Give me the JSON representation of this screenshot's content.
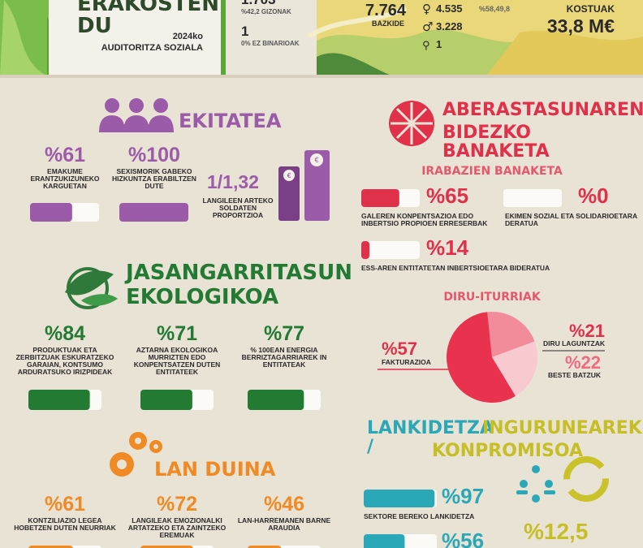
{
  "header": {
    "title": "ERAKOSTEN DU",
    "year": "2024ko",
    "subtitle": "AUDITORITZA SOZIALA",
    "workers": {
      "men_count": "1.703",
      "men_pct": "%42,2 GIZONAK",
      "nonbinary_count": "1",
      "nonbinary_pct": "0% EZ BINARIOAK"
    },
    "members": {
      "total": "7.764",
      "total_label": "BAZKIDE",
      "women": "4.535",
      "women_pct": "%58,49,8",
      "men": "3.228",
      "other": "1"
    },
    "costs": {
      "label": "KOSTUAK",
      "value": "33,8 M€"
    }
  },
  "equity": {
    "title": "EKITATEA",
    "items": [
      {
        "value": 61,
        "label": "%61",
        "text": "EMAKUME ERANTZUKIZUNEKO KARGUETAN"
      },
      {
        "value": 100,
        "label": "%100",
        "text": "SEXISMORIK GABEKO HIZKUNTZA ERABILTZEN DUTE"
      }
    ],
    "ratio": {
      "label": "1/1,32",
      "text": "LANGILEEN ARTEKO SOLDATEN PROPORTZIOA"
    }
  },
  "ecology": {
    "title_a": "JASANGARRITASUN",
    "title_b": "EKOLOGIKOA",
    "items": [
      {
        "value": 84,
        "label": "%84",
        "text": "PRODUKTUAK ETA ZERBITZUAK ESKURATZEKO GARAIAN, KONTSUMO ARDURATSUKO IRIZPIDEAK"
      },
      {
        "value": 71,
        "label": "%71",
        "text": "AZTARNA EKOLOGIKOA MURRIZTEN EDO KONPENTSATZEN DUTEN ENTITATEEK"
      },
      {
        "value": 77,
        "label": "%77",
        "text": "% 100EAN ENERGIA BERRIZTAGARRIAREK IN ENTITATEAK"
      }
    ]
  },
  "decent_work": {
    "title": "LAN DUINA",
    "items": [
      {
        "value": 61,
        "label": "%61",
        "text": "KONTZILIAZIO LEGEA HOBETZEN DUTEN NEURRIAK"
      },
      {
        "value": 72,
        "label": "%72",
        "text": "LANGILEAK EMOZIONALKI ARTATZEKO ETA ZAINTZEKO EREMUAK"
      },
      {
        "value": 46,
        "label": "%46",
        "text": "LAN-HARREMANEN BARNE ARAUDIA"
      }
    ]
  },
  "wealth": {
    "title_a": "ABERASTASUNAREN",
    "title_b": "BIDEZKO BANAKETA",
    "profits": {
      "title": "IRABAZIEN BANAKETA",
      "items": [
        {
          "value": 65,
          "label": "%65",
          "text": "GALEREN KONPENTSAZIOA EDO INBERTSIO PROPIOEN ERRESERBAK"
        },
        {
          "value": 0,
          "label": "%0",
          "text": "EKIMEN SOZIAL ETA SOLIDARIOETARA DERATUA"
        },
        {
          "value": 14,
          "label": "%14",
          "text": "ESS-AREN ENTITATETAN INBERTSIOETARA BIDERATUA"
        }
      ]
    },
    "income": {
      "title": "DIRU-ITURRIAK",
      "items": [
        {
          "value": 21,
          "label": "%21",
          "text": "DIRU LAGUNTZAK",
          "color": "#f28b9a"
        },
        {
          "value": 22,
          "label": "%22",
          "text": "BESTE BATZUK",
          "color": "#f9c9d0"
        },
        {
          "value": 57,
          "label": "%57",
          "text": "FAKTURAZIOA",
          "color": "#e8324e"
        }
      ]
    }
  },
  "cooperation": {
    "title_a": "LANKIDETZA /",
    "title_b": "INGURUNEAREKIKO",
    "title_c": "KONPROMISOA",
    "items": [
      {
        "value": 97,
        "label": "%97",
        "text": "SEKTORE BEREKO LANKIDETZA"
      },
      {
        "value": 56,
        "label": "%56"
      }
    ],
    "commitment": {
      "label": "%12,5"
    }
  }
}
